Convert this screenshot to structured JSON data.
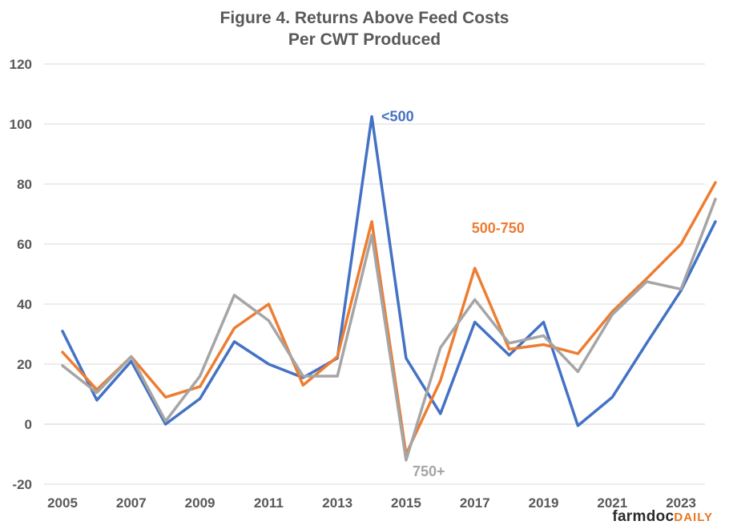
{
  "chart_data": {
    "type": "line",
    "title": "Figure  4. Returns Above Feed Costs",
    "subtitle": "Per CWT Produced",
    "xlabel": "",
    "ylabel": "",
    "ylim": [
      -20,
      120
    ],
    "yticks": [
      -20,
      0,
      20,
      40,
      60,
      80,
      100,
      120
    ],
    "xlim": [
      2005,
      2024
    ],
    "xticks": [
      2005,
      2007,
      2009,
      2011,
      2013,
      2015,
      2017,
      2019,
      2021,
      2023
    ],
    "grid": "horizontal",
    "x": [
      2005,
      2006,
      2007,
      2008,
      2009,
      2010,
      2011,
      2012,
      2013,
      2014,
      2015,
      2016,
      2017,
      2018,
      2019,
      2020,
      2021,
      2022,
      2023,
      2024
    ],
    "series": [
      {
        "name": "<500",
        "color": "#4472c4",
        "values": [
          31,
          8,
          21,
          0,
          8.5,
          27.5,
          20,
          15.5,
          22,
          102.5,
          22,
          3.5,
          34,
          23,
          34,
          -0.5,
          9,
          27,
          44.5,
          67.5
        ]
      },
      {
        "name": "500-750",
        "color": "#ed7d31",
        "values": [
          24,
          11.5,
          22.5,
          9,
          12.5,
          32,
          40,
          13,
          22.5,
          67.5,
          -10,
          14.5,
          52,
          25,
          26.5,
          23.5,
          37.5,
          48.5,
          60,
          80.5
        ]
      },
      {
        "name": "750+",
        "color": "#a5a5a5",
        "values": [
          19.5,
          10.5,
          22.5,
          1,
          16,
          43,
          34.5,
          16,
          16,
          63,
          -12,
          25.5,
          41.5,
          27,
          29.5,
          17.5,
          36.5,
          47.5,
          45,
          75
        ]
      }
    ],
    "annotations": [
      {
        "text": "<500",
        "series": 0
      },
      {
        "text": "500-750",
        "series": 1
      },
      {
        "text": "750+",
        "series": 2
      }
    ]
  },
  "logo": {
    "part1": "farmdoc",
    "part2": "DAILY"
  }
}
